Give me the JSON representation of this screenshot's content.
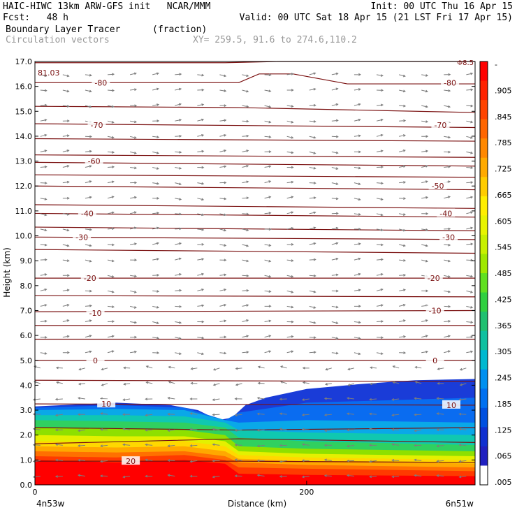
{
  "header": {
    "line1_left": "HAIC-HIWC 13km ARW-GFS init   NCAR/MMM",
    "line1_right": "Init: 00 UTC Thu 16 Apr 15",
    "line2_left": "Fcst:   48 h",
    "line2_right": "Valid: 00 UTC Sat 18 Apr 15 (21 LST Fri 17 Apr 15)",
    "line3_left": "Boundary Layer Tracer",
    "line3_units": "(fraction)",
    "line4_left": "Circulation vectors",
    "line4_coords": "XY= 259.5, 91.6 to 274.6,110.2"
  },
  "colors": {
    "contour": "#7a1010",
    "vector": "#7d7d7d",
    "frame": "#000000"
  },
  "chart_data": {
    "type": "heatmap",
    "title": "Boundary Layer Tracer",
    "units": "(fraction)",
    "xlabel": "Distance (km)",
    "ylabel": "Height (km)",
    "xlim": [
      0,
      324
    ],
    "ylim": [
      0,
      17
    ],
    "x_ticks": [
      {
        "value": 0,
        "label": "0"
      },
      {
        "value": 200,
        "label": "200"
      }
    ],
    "x_end_labels": {
      "left": "4n53w",
      "right": "6n51w"
    },
    "y_ticks": [
      0.0,
      1.0,
      2.0,
      3.0,
      4.0,
      5.0,
      6.0,
      7.0,
      8.0,
      9.0,
      10.0,
      11.0,
      12.0,
      13.0,
      14.0,
      15.0,
      16.0,
      17.0
    ],
    "y_tick_labels": [
      "0.0",
      "1.0",
      "2.0",
      "3.0",
      "4.0",
      "5.0",
      "6.0",
      "7.0",
      "8.0",
      "9.0",
      "10.0",
      "11.0",
      "12.0",
      "13.0",
      "14.0",
      "15.0",
      "16.0",
      "17.0"
    ],
    "colorbar": {
      "labels": [
        "-",
        ".905",
        ".845",
        ".785",
        ".725",
        ".665",
        ".605",
        ".545",
        ".485",
        ".425",
        ".365",
        ".305",
        ".245",
        ".185",
        ".125",
        ".065",
        ".005"
      ],
      "colors": [
        "#ff0000",
        "#ff2200",
        "#ff4400",
        "#ff6600",
        "#ff8800",
        "#ffaa00",
        "#ffcc00",
        "#ffee00",
        "#e8f400",
        "#c8f000",
        "#a0e800",
        "#60e020",
        "#30d040",
        "#20c070",
        "#10c0a0",
        "#00b8d0",
        "#0090f0",
        "#0070f0",
        "#0050e0",
        "#1030d0",
        "#2020c0",
        "#ffffff"
      ]
    },
    "isotherm_labels": [
      {
        "value": "-80",
        "x": 48,
        "z": 16.15
      },
      {
        "value": "-80",
        "x": 305,
        "z": 16.15
      },
      {
        "value": "-70",
        "x": 45,
        "z": 14.45
      },
      {
        "value": "-70",
        "x": 298,
        "z": 14.45
      },
      {
        "value": "-60",
        "x": 43,
        "z": 13.0
      },
      {
        "value": "-50",
        "x": 296,
        "z": 12.0
      },
      {
        "value": "-40",
        "x": 38,
        "z": 10.9
      },
      {
        "value": "-40",
        "x": 302,
        "z": 10.9
      },
      {
        "value": "-30",
        "x": 34,
        "z": 9.95
      },
      {
        "value": "-30",
        "x": 304,
        "z": 9.95
      },
      {
        "value": "-20",
        "x": 40,
        "z": 8.3
      },
      {
        "value": "-20",
        "x": 293,
        "z": 8.3
      },
      {
        "value": "-10",
        "x": 44,
        "z": 6.9
      },
      {
        "value": "-10",
        "x": 294,
        "z": 7.0
      },
      {
        "value": "0",
        "x": 44,
        "z": 5.0
      },
      {
        "value": "0",
        "x": 294,
        "z": 5.0
      },
      {
        "value": "10",
        "x": 52,
        "z": 3.25
      },
      {
        "value": "10",
        "x": 306,
        "z": 3.2
      },
      {
        "value": "20",
        "x": 70,
        "z": 0.95
      }
    ],
    "max_label": "81.03",
    "corner_label": "Φ8.5",
    "tracer_top_km": [
      [
        0,
        3.15
      ],
      [
        20,
        3.2
      ],
      [
        40,
        3.25
      ],
      [
        60,
        3.3
      ],
      [
        80,
        3.25
      ],
      [
        100,
        3.2
      ],
      [
        120,
        3.0
      ],
      [
        135,
        2.6
      ],
      [
        145,
        2.7
      ],
      [
        155,
        3.2
      ],
      [
        170,
        3.5
      ],
      [
        200,
        3.85
      ],
      [
        240,
        4.05
      ],
      [
        280,
        4.2
      ],
      [
        324,
        4.25
      ]
    ],
    "tracer_bands": [
      {
        "level": 0.965,
        "top_km": [
          [
            0,
            1.0
          ],
          [
            60,
            0.9
          ],
          [
            110,
            1.0
          ],
          [
            140,
            0.85
          ],
          [
            150,
            0.45
          ],
          [
            200,
            0.4
          ],
          [
            324,
            0.35
          ]
        ]
      },
      {
        "level": 0.905,
        "top_km": [
          [
            0,
            1.15
          ],
          [
            60,
            1.1
          ],
          [
            110,
            1.2
          ],
          [
            140,
            1.0
          ],
          [
            150,
            0.7
          ],
          [
            200,
            0.65
          ],
          [
            324,
            0.55
          ]
        ]
      },
      {
        "level": 0.785,
        "top_km": [
          [
            0,
            1.35
          ],
          [
            60,
            1.3
          ],
          [
            110,
            1.35
          ],
          [
            140,
            1.15
          ],
          [
            150,
            0.9
          ],
          [
            200,
            0.8
          ],
          [
            324,
            0.7
          ]
        ]
      },
      {
        "level": 0.665,
        "top_km": [
          [
            0,
            1.55
          ],
          [
            60,
            1.5
          ],
          [
            110,
            1.55
          ],
          [
            140,
            1.35
          ],
          [
            150,
            1.05
          ],
          [
            200,
            0.95
          ],
          [
            324,
            0.85
          ]
        ]
      },
      {
        "level": 0.545,
        "top_km": [
          [
            0,
            1.75
          ],
          [
            60,
            1.7
          ],
          [
            110,
            1.75
          ],
          [
            140,
            1.55
          ],
          [
            150,
            1.2
          ],
          [
            200,
            1.1
          ],
          [
            324,
            1.0
          ]
        ]
      },
      {
        "level": 0.425,
        "top_km": [
          [
            0,
            2.0
          ],
          [
            60,
            1.95
          ],
          [
            110,
            1.95
          ],
          [
            140,
            1.75
          ],
          [
            150,
            1.35
          ],
          [
            200,
            1.25
          ],
          [
            324,
            1.15
          ]
        ]
      },
      {
        "level": 0.305,
        "top_km": [
          [
            0,
            2.3
          ],
          [
            60,
            2.25
          ],
          [
            110,
            2.2
          ],
          [
            140,
            2.0
          ],
          [
            150,
            1.55
          ],
          [
            200,
            1.45
          ],
          [
            324,
            1.35
          ]
        ]
      },
      {
        "level": 0.185,
        "top_km": [
          [
            0,
            2.6
          ],
          [
            60,
            2.55
          ],
          [
            110,
            2.5
          ],
          [
            140,
            2.3
          ],
          [
            150,
            1.9
          ],
          [
            200,
            1.75
          ],
          [
            324,
            1.6
          ]
        ]
      },
      {
        "level": 0.125,
        "top_km": [
          [
            0,
            2.8
          ],
          [
            60,
            2.8
          ],
          [
            110,
            2.75
          ],
          [
            140,
            2.5
          ],
          [
            150,
            2.2
          ],
          [
            200,
            2.1
          ],
          [
            324,
            2.0
          ]
        ]
      },
      {
        "level": 0.065,
        "top_km": [
          [
            0,
            3.0
          ],
          [
            60,
            3.05
          ],
          [
            110,
            3.0
          ],
          [
            140,
            2.6
          ],
          [
            150,
            2.5
          ],
          [
            200,
            2.6
          ],
          [
            324,
            2.5
          ]
        ]
      },
      {
        "level": 0.035,
        "top_km": [
          [
            0,
            3.1
          ],
          [
            60,
            3.2
          ],
          [
            110,
            3.1
          ],
          [
            140,
            2.6
          ],
          [
            150,
            2.9
          ],
          [
            200,
            3.3
          ],
          [
            324,
            3.5
          ]
        ]
      },
      {
        "level": 0.005,
        "top_km": [
          [
            0,
            3.15
          ],
          [
            20,
            3.2
          ],
          [
            40,
            3.25
          ],
          [
            60,
            3.3
          ],
          [
            80,
            3.25
          ],
          [
            100,
            3.2
          ],
          [
            120,
            3.0
          ],
          [
            135,
            2.6
          ],
          [
            145,
            2.7
          ],
          [
            155,
            3.2
          ],
          [
            170,
            3.5
          ],
          [
            200,
            3.85
          ],
          [
            240,
            4.05
          ],
          [
            280,
            4.2
          ],
          [
            324,
            4.25
          ]
        ]
      }
    ],
    "isotherm_lines_km": [
      [
        [
          0,
          16.95
        ],
        [
          140,
          16.95
        ],
        [
          180,
          17.0
        ],
        [
          324,
          17.0
        ]
      ],
      [
        [
          0,
          16.15
        ],
        [
          150,
          16.15
        ],
        [
          165,
          16.5
        ],
        [
          190,
          16.5
        ],
        [
          230,
          16.1
        ],
        [
          324,
          16.1
        ]
      ],
      [
        [
          0,
          15.2
        ],
        [
          150,
          15.15
        ],
        [
          324,
          14.95
        ]
      ],
      [
        [
          0,
          14.5
        ],
        [
          324,
          14.35
        ]
      ],
      [
        [
          0,
          13.9
        ],
        [
          324,
          13.8
        ]
      ],
      [
        [
          0,
          13.25
        ],
        [
          324,
          13.15
        ]
      ],
      [
        [
          0,
          12.95
        ],
        [
          324,
          12.8
        ]
      ],
      [
        [
          0,
          12.45
        ],
        [
          324,
          12.35
        ]
      ],
      [
        [
          0,
          12.0
        ],
        [
          324,
          11.85
        ]
      ],
      [
        [
          0,
          11.25
        ],
        [
          324,
          11.1
        ]
      ],
      [
        [
          0,
          10.9
        ],
        [
          324,
          10.75
        ]
      ],
      [
        [
          0,
          10.35
        ],
        [
          324,
          10.2
        ]
      ],
      [
        [
          0,
          9.95
        ],
        [
          324,
          9.85
        ]
      ],
      [
        [
          0,
          9.45
        ],
        [
          324,
          9.3
        ]
      ],
      [
        [
          0,
          8.3
        ],
        [
          324,
          8.3
        ]
      ],
      [
        [
          0,
          7.6
        ],
        [
          324,
          7.55
        ]
      ],
      [
        [
          0,
          6.95
        ],
        [
          324,
          7.0
        ]
      ],
      [
        [
          0,
          6.4
        ],
        [
          324,
          6.4
        ]
      ],
      [
        [
          0,
          5.85
        ],
        [
          324,
          5.85
        ]
      ],
      [
        [
          0,
          5.0
        ],
        [
          324,
          5.0
        ]
      ],
      [
        [
          0,
          4.2
        ],
        [
          324,
          4.15
        ]
      ],
      [
        [
          0,
          3.25
        ],
        [
          324,
          3.2
        ]
      ],
      [
        [
          0,
          2.3
        ],
        [
          150,
          2.2
        ],
        [
          324,
          2.3
        ]
      ],
      [
        [
          0,
          1.65
        ],
        [
          150,
          1.85
        ],
        [
          324,
          1.7
        ]
      ],
      [
        [
          0,
          0.95
        ],
        [
          150,
          0.95
        ],
        [
          324,
          0.9
        ]
      ]
    ]
  }
}
